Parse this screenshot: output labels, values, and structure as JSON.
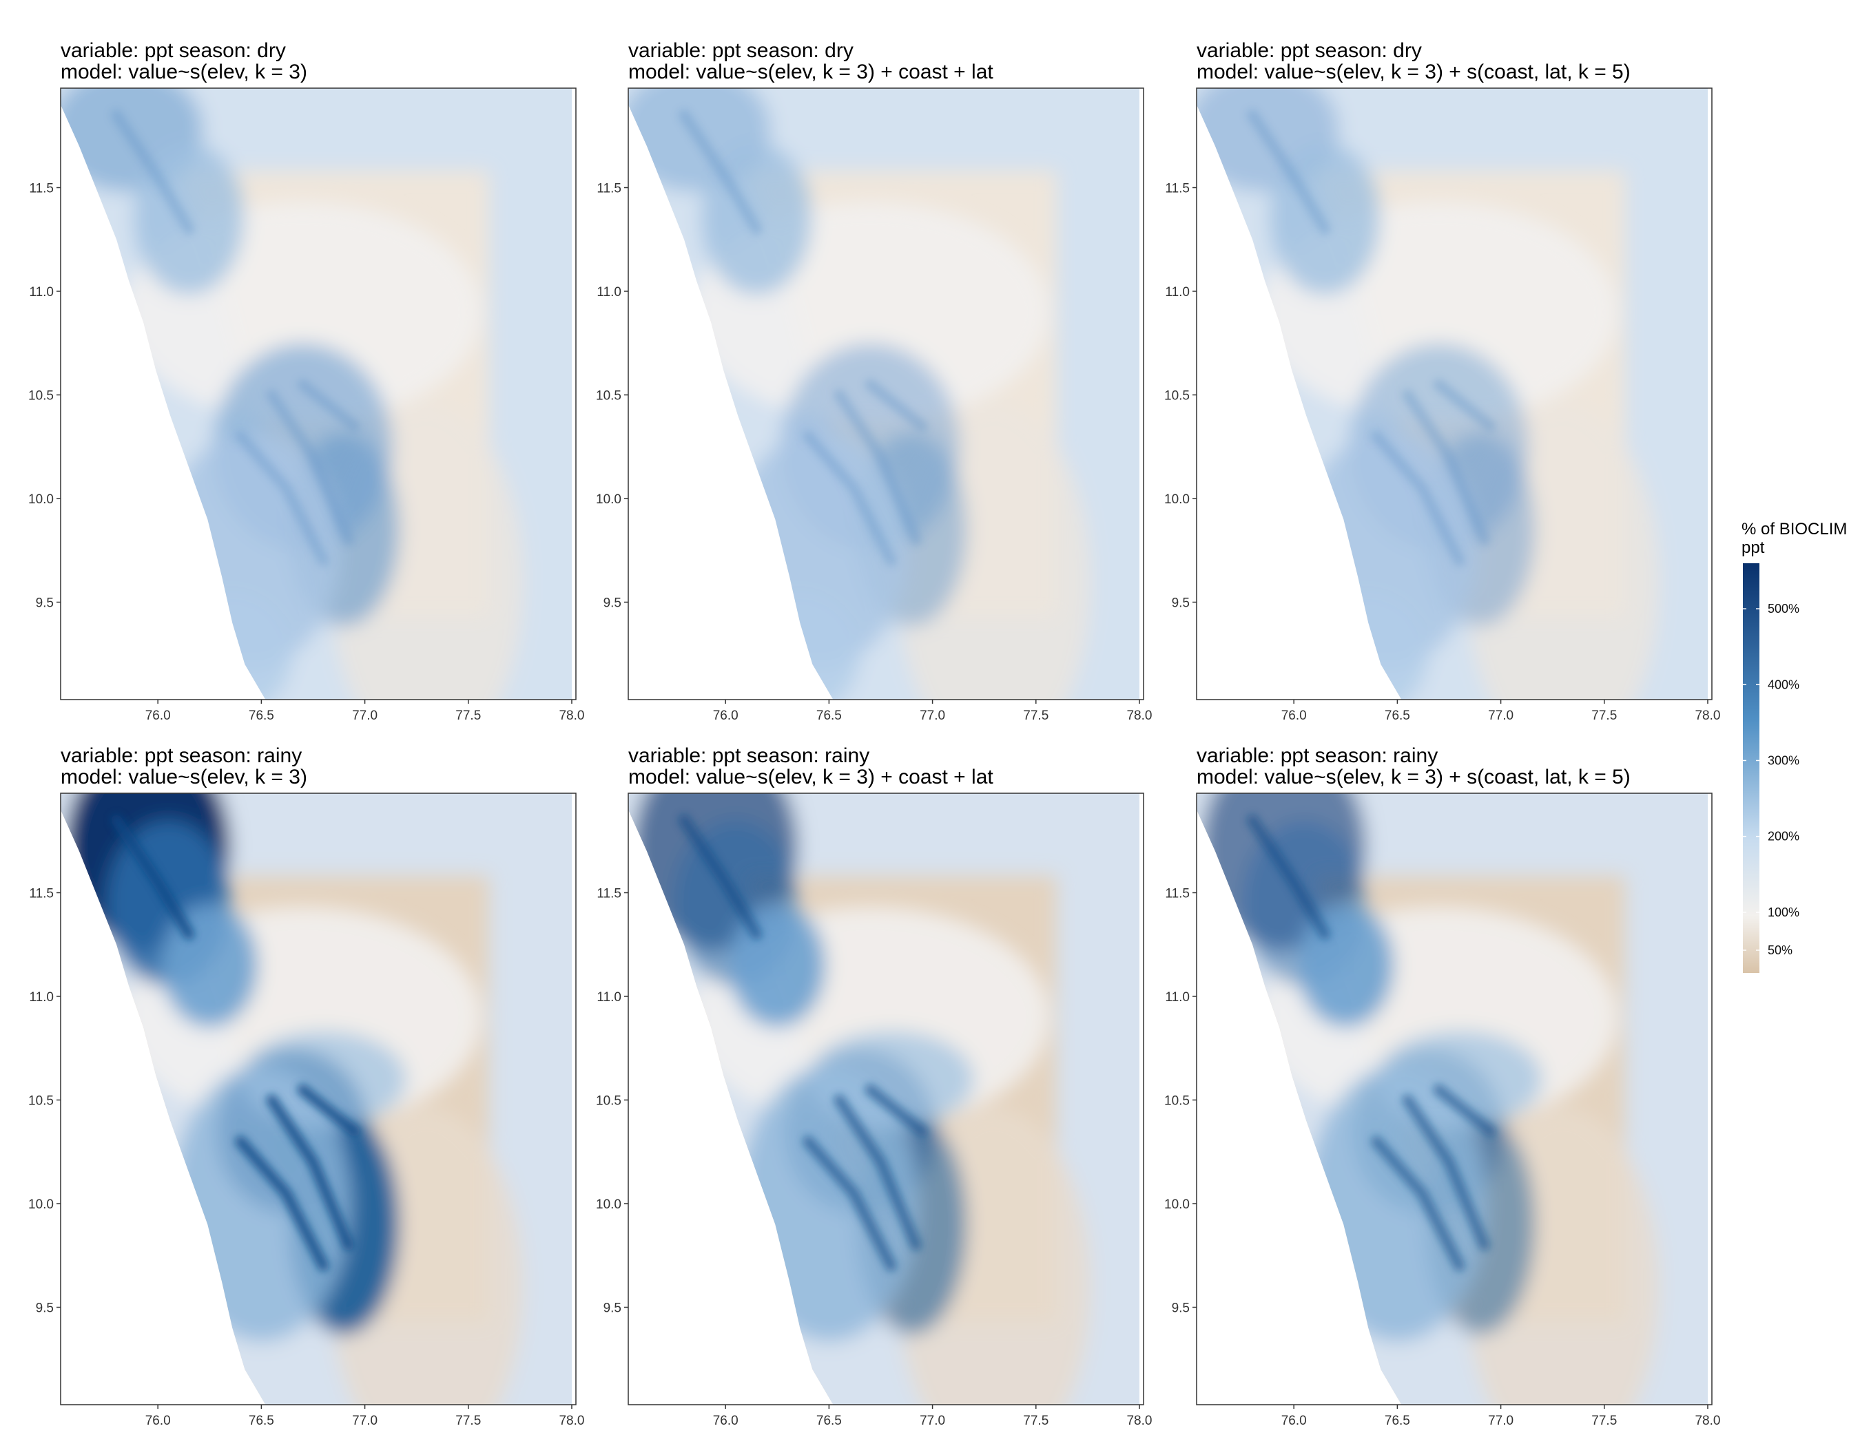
{
  "x_ticks": [
    "76.0",
    "76.5",
    "77.0",
    "77.5",
    "78.0"
  ],
  "x_tick_values": [
    76.0,
    76.5,
    77.0,
    77.5,
    78.0
  ],
  "y_ticks": [
    "11.5",
    "11.0",
    "10.5",
    "10.0",
    "9.5"
  ],
  "y_tick_values": [
    11.5,
    11.0,
    10.5,
    10.0,
    9.5
  ],
  "x_range": [
    75.53,
    78.02
  ],
  "y_range": [
    9.03,
    11.98
  ],
  "panels": [
    {
      "title1": "variable: ppt season: dry",
      "title2": "model: value~s(elev, k = 3)",
      "season": "dry",
      "intensity": 0.55
    },
    {
      "title1": "variable: ppt season: dry",
      "title2": "model: value~s(elev, k = 3) + coast + lat",
      "season": "dry",
      "intensity": 0.4
    },
    {
      "title1": "variable: ppt season: dry",
      "title2": "model: value~s(elev, k = 3) + s(coast, lat, k = 5)",
      "season": "dry",
      "intensity": 0.38
    },
    {
      "title1": "variable: ppt season: rainy",
      "title2": "model: value~s(elev, k = 3)",
      "season": "rainy",
      "intensity": 1.0
    },
    {
      "title1": "variable: ppt season: rainy",
      "title2": "model: value~s(elev, k = 3) + coast + lat",
      "season": "rainy",
      "intensity": 0.62
    },
    {
      "title1": "variable: ppt season: rainy",
      "title2": "model: value~s(elev, k = 3) + s(coast, lat, k = 5)",
      "season": "rainy",
      "intensity": 0.55
    }
  ],
  "legend": {
    "title1": "% of BIOCLIM",
    "title2": "ppt",
    "labels": [
      "500%",
      "400%",
      "300%",
      "200%",
      "100%",
      "50%"
    ],
    "values": [
      500,
      400,
      300,
      200,
      100,
      50
    ],
    "range": [
      20,
      560
    ],
    "colors": {
      "high": "#08306b",
      "mid_high": "#4f8fc4",
      "mid": "#c6dbef",
      "neutral": "#f3f1ee",
      "low": "#d9c3a8"
    }
  }
}
